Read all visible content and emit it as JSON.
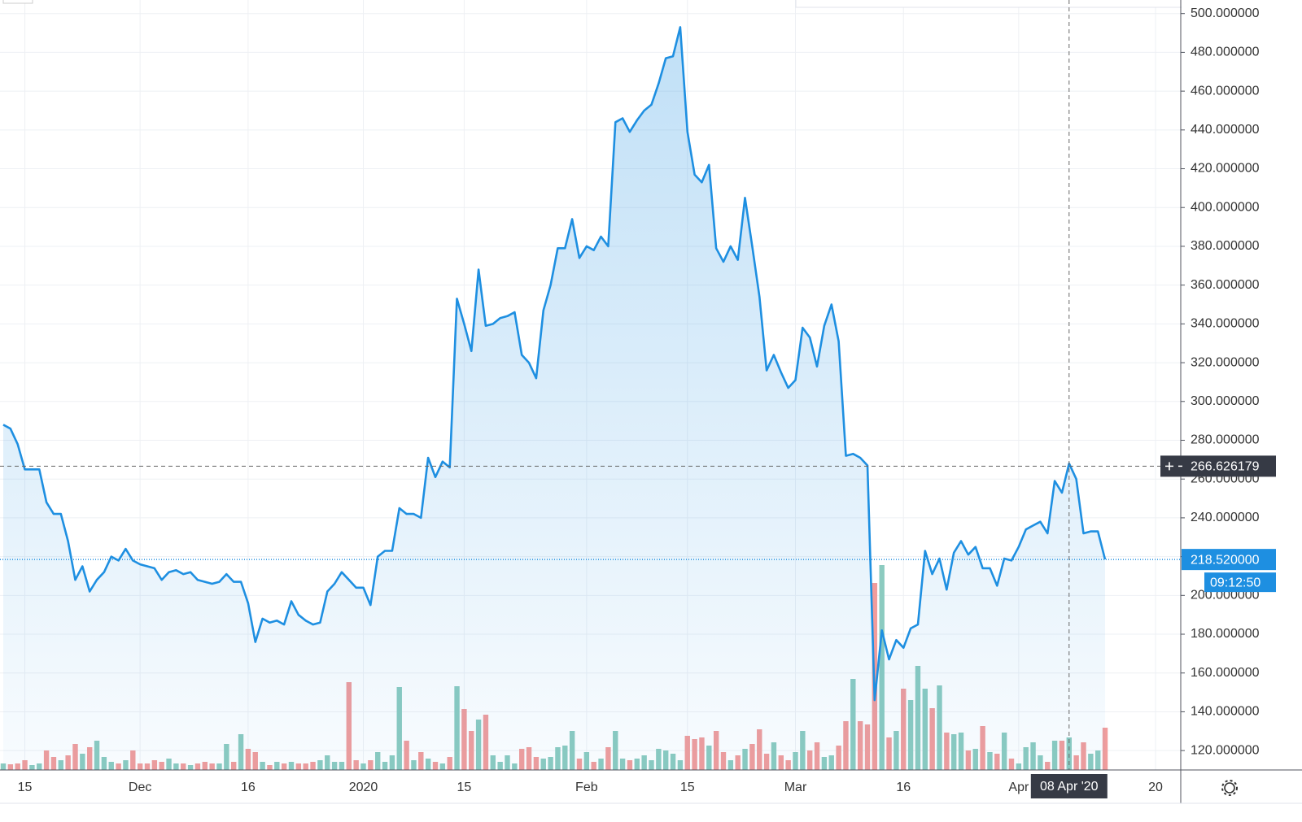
{
  "chart_data": {
    "type": "area",
    "categories": [
      null,
      null,
      null,
      "15",
      null,
      null,
      null,
      null,
      null,
      null,
      null,
      null,
      null,
      null,
      null,
      null,
      null,
      null,
      null,
      "Dec",
      null,
      null,
      null,
      null,
      null,
      null,
      null,
      null,
      null,
      null,
      null,
      null,
      null,
      null,
      "16",
      null,
      null,
      null,
      null,
      null,
      null,
      null,
      null,
      null,
      null,
      null,
      null,
      null,
      null,
      null,
      "2020",
      null,
      null,
      null,
      null,
      null,
      null,
      null,
      null,
      null,
      null,
      null,
      null,
      null,
      "15",
      null,
      null,
      null,
      null,
      null,
      null,
      null,
      null,
      null,
      null,
      null,
      null,
      null,
      null,
      null,
      null,
      "Feb",
      null,
      null,
      null,
      null,
      null,
      null,
      null,
      null,
      null,
      null,
      null,
      null,
      null,
      "15",
      null,
      null,
      null,
      null,
      null,
      null,
      null,
      null,
      null,
      null,
      null,
      null,
      null,
      null,
      "Mar",
      null,
      null,
      null,
      null,
      null,
      null,
      null,
      null,
      null,
      null,
      null,
      null,
      null,
      null,
      "16",
      null,
      null,
      null,
      null,
      null,
      null,
      null,
      null,
      null,
      null,
      null,
      null,
      null,
      null,
      null,
      "Apr",
      null,
      null,
      null,
      null,
      null,
      null,
      null,
      null,
      null,
      null,
      null,
      null,
      null,
      null,
      null,
      null,
      null,
      null,
      "20"
    ],
    "values": [
      288,
      286,
      278,
      265,
      265,
      265,
      248,
      242,
      242,
      228,
      208,
      215,
      202,
      208,
      212,
      220,
      218,
      224,
      218,
      216,
      215,
      214,
      208,
      212,
      213,
      211,
      212,
      208,
      207,
      206,
      207,
      211,
      207,
      207,
      196,
      176,
      188,
      186,
      187,
      185,
      197,
      190,
      187,
      185,
      186,
      202,
      206,
      212,
      208,
      204,
      204,
      195,
      220,
      223,
      223,
      245,
      242,
      242,
      240,
      271,
      261,
      269,
      266,
      353,
      340,
      326,
      368,
      339,
      340,
      343,
      344,
      346,
      324,
      320,
      312,
      347,
      360,
      379,
      379,
      394,
      374,
      380,
      378,
      385,
      380,
      444,
      446,
      439,
      445,
      450,
      453,
      464,
      477,
      478,
      493,
      439,
      417,
      413,
      422,
      379,
      372,
      380,
      373,
      405,
      380,
      354,
      316,
      324,
      315,
      307,
      311,
      338,
      333,
      318,
      339,
      350,
      331,
      272,
      273,
      271,
      267,
      146,
      182,
      167,
      177,
      173,
      183,
      185,
      223,
      211,
      219,
      203,
      222,
      228,
      221,
      225,
      214,
      214,
      205,
      219,
      218,
      225,
      234,
      236,
      238,
      232,
      259,
      253,
      268,
      260,
      232,
      233,
      233,
      218.52,
      null,
      null,
      null,
      null,
      null,
      null,
      null
    ],
    "color": "#1e8fe1",
    "volume": {
      "up_color": "#8ccbc0",
      "down_color": "#f19c9c",
      "values": [
        8,
        7,
        8,
        12,
        6,
        8,
        24,
        16,
        12,
        18,
        32,
        20,
        28,
        36,
        16,
        10,
        8,
        12,
        24,
        8,
        8,
        12,
        10,
        14,
        8,
        8,
        6,
        8,
        10,
        8,
        8,
        32,
        10,
        44,
        26,
        22,
        10,
        6,
        10,
        8,
        10,
        8,
        8,
        10,
        12,
        18,
        10,
        10,
        108,
        12,
        8,
        12,
        22,
        10,
        18,
        102,
        36,
        12,
        22,
        14,
        10,
        8,
        16,
        103,
        75,
        48,
        62,
        68,
        18,
        10,
        18,
        8,
        26,
        28,
        16,
        14,
        16,
        28,
        30,
        48,
        14,
        22,
        10,
        14,
        28,
        48,
        14,
        12,
        14,
        18,
        12,
        26,
        24,
        20,
        12,
        42,
        38,
        40,
        30,
        48,
        22,
        12,
        18,
        26,
        32,
        50,
        20,
        34,
        18,
        12,
        22,
        48,
        24,
        34,
        16,
        18,
        30,
        60,
        112,
        60,
        56,
        230,
        252,
        40,
        48,
        100,
        86,
        128,
        100,
        76,
        104,
        46,
        44,
        46,
        24,
        26,
        54,
        22,
        20,
        46,
        14,
        8,
        28,
        34,
        18,
        10,
        36,
        36,
        40,
        18,
        34,
        20,
        24,
        52,
        null,
        null,
        null,
        null,
        null,
        null,
        null
      ]
    },
    "ylim": [
      110,
      507
    ],
    "yticks": [
      {
        "value": 120,
        "label": "120.000000"
      },
      {
        "value": 140,
        "label": "140.000000"
      },
      {
        "value": 160,
        "label": "160.000000"
      },
      {
        "value": 180,
        "label": "180.000000"
      },
      {
        "value": 200,
        "label": "200.000000"
      },
      {
        "value": 220,
        "label": "220.000000"
      },
      {
        "value": 240,
        "label": "240.000000"
      },
      {
        "value": 260,
        "label": "260.000000"
      },
      {
        "value": 280,
        "label": "280.000000"
      },
      {
        "value": 300,
        "label": "300.000000"
      },
      {
        "value": 320,
        "label": "320.000000"
      },
      {
        "value": 340,
        "label": "340.000000"
      },
      {
        "value": 360,
        "label": "360.000000"
      },
      {
        "value": 380,
        "label": "380.000000"
      },
      {
        "value": 400,
        "label": "400.000000"
      },
      {
        "value": 420,
        "label": "420.000000"
      },
      {
        "value": 440,
        "label": "440.000000"
      },
      {
        "value": 460,
        "label": "460.000000"
      },
      {
        "value": 480,
        "label": "480.000000"
      },
      {
        "value": 500,
        "label": "500.000000"
      }
    ],
    "grid": true,
    "last_price": {
      "value": 218.52,
      "label": "218.520000"
    },
    "countdown": "09:12:50",
    "crosshair": {
      "price": 266.626179,
      "date": "08 Apr '20"
    }
  }
}
